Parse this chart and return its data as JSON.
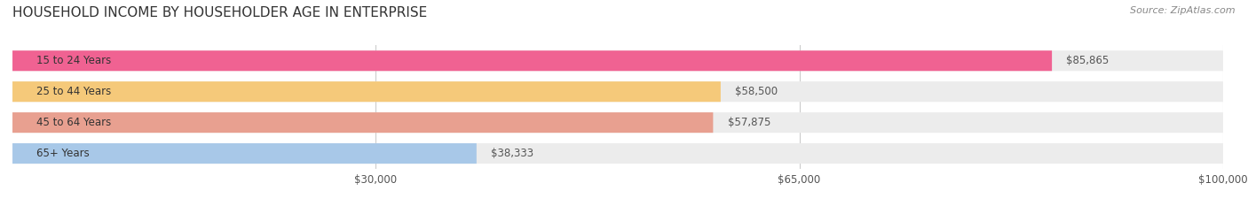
{
  "title": "HOUSEHOLD INCOME BY HOUSEHOLDER AGE IN ENTERPRISE",
  "source": "Source: ZipAtlas.com",
  "categories": [
    "15 to 24 Years",
    "25 to 44 Years",
    "45 to 64 Years",
    "65+ Years"
  ],
  "values": [
    85865,
    58500,
    57875,
    38333
  ],
  "bar_colors": [
    "#f06292",
    "#f5c97a",
    "#e8a090",
    "#a8c8e8"
  ],
  "bar_bg_color": "#ececec",
  "value_labels": [
    "$85,865",
    "$58,500",
    "$57,875",
    "$38,333"
  ],
  "xlim": [
    0,
    100000
  ],
  "xticks": [
    30000,
    65000,
    100000
  ],
  "xticklabels": [
    "$30,000",
    "$65,000",
    "$100,000"
  ],
  "title_fontsize": 11,
  "source_fontsize": 8,
  "label_fontsize": 8.5,
  "value_fontsize": 8.5
}
